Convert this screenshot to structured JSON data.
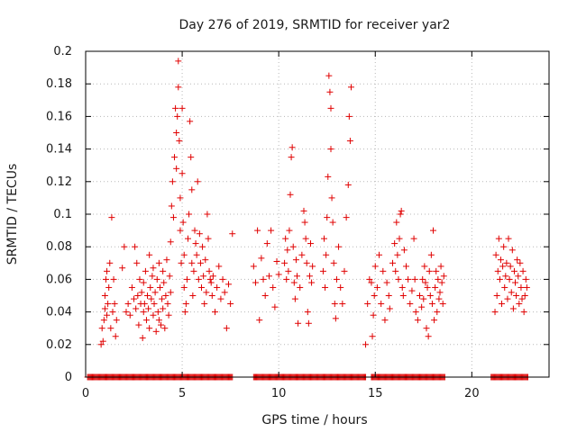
{
  "chart_data": {
    "type": "scatter",
    "title": "Day 276 of 2019, SRMTID for receiver yar2",
    "xlabel": "GPS time / hours",
    "ylabel": "SRMTID / TECUs",
    "xlim": [
      0,
      24
    ],
    "ylim": [
      0,
      0.2
    ],
    "xticks": [
      0,
      5,
      10,
      15,
      20
    ],
    "yticks": [
      0,
      0.02,
      0.04,
      0.06,
      0.08,
      0.1,
      0.12,
      0.14,
      0.16,
      0.18,
      0.2
    ],
    "grid": true,
    "marker": "+",
    "color": "#e00000",
    "series": [
      {
        "name": "SRMTID",
        "points": [
          [
            0.8,
            0.02
          ],
          [
            0.85,
            0.03
          ],
          [
            0.9,
            0.022
          ],
          [
            0.95,
            0.035
          ],
          [
            1.0,
            0.042
          ],
          [
            1.0,
            0.05
          ],
          [
            1.05,
            0.06
          ],
          [
            1.1,
            0.038
          ],
          [
            1.1,
            0.065
          ],
          [
            1.15,
            0.045
          ],
          [
            1.2,
            0.055
          ],
          [
            1.25,
            0.07
          ],
          [
            1.3,
            0.03
          ],
          [
            1.35,
            0.098
          ],
          [
            1.4,
            0.04
          ],
          [
            1.45,
            0.06
          ],
          [
            1.5,
            0.045
          ],
          [
            1.55,
            0.025
          ],
          [
            1.6,
            0.035
          ],
          [
            1.9,
            0.067
          ],
          [
            2.0,
            0.08
          ],
          [
            2.1,
            0.04
          ],
          [
            2.2,
            0.045
          ],
          [
            2.3,
            0.038
          ],
          [
            2.4,
            0.055
          ],
          [
            2.5,
            0.048
          ],
          [
            2.55,
            0.08
          ],
          [
            2.6,
            0.042
          ],
          [
            2.65,
            0.07
          ],
          [
            2.7,
            0.05
          ],
          [
            2.75,
            0.032
          ],
          [
            2.8,
            0.06
          ],
          [
            2.85,
            0.045
          ],
          [
            2.9,
            0.052
          ],
          [
            2.95,
            0.024
          ],
          [
            3.0,
            0.04
          ],
          [
            3.0,
            0.058
          ],
          [
            3.05,
            0.045
          ],
          [
            3.1,
            0.065
          ],
          [
            3.15,
            0.035
          ],
          [
            3.2,
            0.05
          ],
          [
            3.25,
            0.042
          ],
          [
            3.3,
            0.075
          ],
          [
            3.3,
            0.03
          ],
          [
            3.35,
            0.055
          ],
          [
            3.4,
            0.048
          ],
          [
            3.45,
            0.062
          ],
          [
            3.5,
            0.038
          ],
          [
            3.5,
            0.067
          ],
          [
            3.55,
            0.045
          ],
          [
            3.6,
            0.052
          ],
          [
            3.65,
            0.028
          ],
          [
            3.7,
            0.06
          ],
          [
            3.75,
            0.04
          ],
          [
            3.8,
            0.035
          ],
          [
            3.8,
            0.07
          ],
          [
            3.85,
            0.055
          ],
          [
            3.9,
            0.032
          ],
          [
            3.95,
            0.048
          ],
          [
            4.0,
            0.065
          ],
          [
            4.0,
            0.042
          ],
          [
            4.05,
            0.058
          ],
          [
            4.1,
            0.03
          ],
          [
            4.15,
            0.05
          ],
          [
            4.2,
            0.072
          ],
          [
            4.25,
            0.045
          ],
          [
            4.3,
            0.038
          ],
          [
            4.35,
            0.062
          ],
          [
            4.4,
            0.052
          ],
          [
            4.4,
            0.083
          ],
          [
            4.45,
            0.105
          ],
          [
            4.5,
            0.12
          ],
          [
            4.55,
            0.098
          ],
          [
            4.6,
            0.135
          ],
          [
            4.65,
            0.165
          ],
          [
            4.7,
            0.15
          ],
          [
            4.7,
            0.128
          ],
          [
            4.75,
            0.16
          ],
          [
            4.8,
            0.194
          ],
          [
            4.8,
            0.178
          ],
          [
            4.85,
            0.145
          ],
          [
            4.9,
            0.11
          ],
          [
            4.9,
            0.09
          ],
          [
            4.95,
            0.07
          ],
          [
            5.0,
            0.165
          ],
          [
            5.0,
            0.125
          ],
          [
            5.05,
            0.095
          ],
          [
            5.1,
            0.075
          ],
          [
            5.1,
            0.055
          ],
          [
            5.15,
            0.04
          ],
          [
            5.2,
            0.045
          ],
          [
            5.25,
            0.06
          ],
          [
            5.3,
            0.085
          ],
          [
            5.35,
            0.1
          ],
          [
            5.4,
            0.157
          ],
          [
            5.45,
            0.135
          ],
          [
            5.5,
            0.115
          ],
          [
            5.5,
            0.07
          ],
          [
            5.55,
            0.05
          ],
          [
            5.6,
            0.065
          ],
          [
            5.65,
            0.09
          ],
          [
            5.7,
            0.082
          ],
          [
            5.75,
            0.075
          ],
          [
            5.8,
            0.12
          ],
          [
            5.85,
            0.06
          ],
          [
            5.9,
            0.088
          ],
          [
            5.95,
            0.07
          ],
          [
            6.0,
            0.055
          ],
          [
            6.05,
            0.08
          ],
          [
            6.1,
            0.062
          ],
          [
            6.15,
            0.045
          ],
          [
            6.2,
            0.072
          ],
          [
            6.25,
            0.052
          ],
          [
            6.3,
            0.1
          ],
          [
            6.35,
            0.085
          ],
          [
            6.4,
            0.065
          ],
          [
            6.45,
            0.06
          ],
          [
            6.5,
            0.058
          ],
          [
            6.55,
            0.05
          ],
          [
            6.6,
            0.062
          ],
          [
            6.7,
            0.04
          ],
          [
            6.8,
            0.055
          ],
          [
            6.9,
            0.068
          ],
          [
            7.0,
            0.048
          ],
          [
            7.1,
            0.06
          ],
          [
            7.2,
            0.052
          ],
          [
            7.3,
            0.03
          ],
          [
            7.4,
            0.057
          ],
          [
            7.5,
            0.045
          ],
          [
            7.6,
            0.088
          ],
          [
            8.7,
            0.068
          ],
          [
            8.8,
            0.058
          ],
          [
            8.9,
            0.09
          ],
          [
            9.0,
            0.035
          ],
          [
            9.1,
            0.073
          ],
          [
            9.2,
            0.06
          ],
          [
            9.3,
            0.05
          ],
          [
            9.4,
            0.082
          ],
          [
            9.5,
            0.062
          ],
          [
            9.6,
            0.09
          ],
          [
            9.7,
            0.055
          ],
          [
            9.8,
            0.043
          ],
          [
            9.9,
            0.071
          ],
          [
            10.0,
            0.063
          ],
          [
            10.3,
            0.07
          ],
          [
            10.35,
            0.085
          ],
          [
            10.4,
            0.06
          ],
          [
            10.45,
            0.078
          ],
          [
            10.5,
            0.065
          ],
          [
            10.55,
            0.09
          ],
          [
            10.6,
            0.112
          ],
          [
            10.65,
            0.135
          ],
          [
            10.7,
            0.141
          ],
          [
            10.75,
            0.08
          ],
          [
            10.8,
            0.058
          ],
          [
            10.85,
            0.048
          ],
          [
            10.9,
            0.072
          ],
          [
            10.95,
            0.062
          ],
          [
            11.0,
            0.033
          ],
          [
            11.1,
            0.055
          ],
          [
            11.2,
            0.075
          ],
          [
            11.3,
            0.102
          ],
          [
            11.35,
            0.095
          ],
          [
            11.4,
            0.085
          ],
          [
            11.45,
            0.07
          ],
          [
            11.5,
            0.04
          ],
          [
            11.55,
            0.033
          ],
          [
            11.6,
            0.062
          ],
          [
            11.65,
            0.082
          ],
          [
            11.7,
            0.058
          ],
          [
            11.75,
            0.068
          ],
          [
            12.3,
            0.065
          ],
          [
            12.35,
            0.085
          ],
          [
            12.4,
            0.055
          ],
          [
            12.45,
            0.075
          ],
          [
            12.5,
            0.098
          ],
          [
            12.55,
            0.123
          ],
          [
            12.6,
            0.185
          ],
          [
            12.65,
            0.175
          ],
          [
            12.7,
            0.165
          ],
          [
            12.7,
            0.14
          ],
          [
            12.75,
            0.11
          ],
          [
            12.8,
            0.095
          ],
          [
            12.85,
            0.07
          ],
          [
            12.9,
            0.045
          ],
          [
            12.95,
            0.036
          ],
          [
            13.0,
            0.06
          ],
          [
            13.1,
            0.08
          ],
          [
            13.2,
            0.055
          ],
          [
            13.3,
            0.045
          ],
          [
            13.4,
            0.065
          ],
          [
            13.5,
            0.098
          ],
          [
            13.6,
            0.118
          ],
          [
            13.65,
            0.16
          ],
          [
            13.7,
            0.145
          ],
          [
            13.75,
            0.178
          ],
          [
            14.5,
            0.02
          ],
          [
            14.6,
            0.045
          ],
          [
            14.7,
            0.06
          ],
          [
            14.8,
            0.058
          ],
          [
            14.85,
            0.025
          ],
          [
            14.9,
            0.038
          ],
          [
            14.95,
            0.05
          ],
          [
            15.0,
            0.068
          ],
          [
            15.1,
            0.055
          ],
          [
            15.2,
            0.075
          ],
          [
            15.3,
            0.045
          ],
          [
            15.4,
            0.065
          ],
          [
            15.5,
            0.035
          ],
          [
            15.6,
            0.058
          ],
          [
            15.7,
            0.05
          ],
          [
            15.75,
            0.042
          ],
          [
            15.9,
            0.07
          ],
          [
            16.0,
            0.082
          ],
          [
            16.05,
            0.065
          ],
          [
            16.1,
            0.095
          ],
          [
            16.15,
            0.075
          ],
          [
            16.2,
            0.06
          ],
          [
            16.25,
            0.085
          ],
          [
            16.3,
            0.1
          ],
          [
            16.35,
            0.102
          ],
          [
            16.4,
            0.055
          ],
          [
            16.45,
            0.05
          ],
          [
            16.5,
            0.078
          ],
          [
            16.6,
            0.068
          ],
          [
            16.7,
            0.06
          ],
          [
            16.8,
            0.045
          ],
          [
            16.9,
            0.053
          ],
          [
            17.0,
            0.085
          ],
          [
            17.05,
            0.06
          ],
          [
            17.1,
            0.04
          ],
          [
            17.2,
            0.035
          ],
          [
            17.3,
            0.05
          ],
          [
            17.4,
            0.043
          ],
          [
            17.45,
            0.06
          ],
          [
            17.5,
            0.048
          ],
          [
            17.55,
            0.068
          ],
          [
            17.6,
            0.058
          ],
          [
            17.65,
            0.03
          ],
          [
            17.7,
            0.055
          ],
          [
            17.75,
            0.025
          ],
          [
            17.8,
            0.065
          ],
          [
            17.85,
            0.05
          ],
          [
            17.9,
            0.075
          ],
          [
            17.95,
            0.045
          ],
          [
            18.0,
            0.09
          ],
          [
            18.05,
            0.035
          ],
          [
            18.1,
            0.055
          ],
          [
            18.15,
            0.065
          ],
          [
            18.2,
            0.04
          ],
          [
            18.25,
            0.06
          ],
          [
            18.3,
            0.048
          ],
          [
            18.35,
            0.052
          ],
          [
            18.4,
            0.068
          ],
          [
            18.45,
            0.058
          ],
          [
            18.5,
            0.045
          ],
          [
            18.55,
            0.062
          ],
          [
            21.2,
            0.04
          ],
          [
            21.25,
            0.075
          ],
          [
            21.3,
            0.05
          ],
          [
            21.35,
            0.065
          ],
          [
            21.4,
            0.085
          ],
          [
            21.45,
            0.06
          ],
          [
            21.5,
            0.072
          ],
          [
            21.55,
            0.045
          ],
          [
            21.6,
            0.068
          ],
          [
            21.65,
            0.08
          ],
          [
            21.7,
            0.055
          ],
          [
            21.75,
            0.062
          ],
          [
            21.8,
            0.07
          ],
          [
            21.85,
            0.048
          ],
          [
            21.9,
            0.085
          ],
          [
            21.95,
            0.06
          ],
          [
            22.0,
            0.068
          ],
          [
            22.05,
            0.052
          ],
          [
            22.1,
            0.078
          ],
          [
            22.15,
            0.042
          ],
          [
            22.2,
            0.065
          ],
          [
            22.25,
            0.058
          ],
          [
            22.3,
            0.05
          ],
          [
            22.35,
            0.072
          ],
          [
            22.4,
            0.062
          ],
          [
            22.45,
            0.045
          ],
          [
            22.5,
            0.07
          ],
          [
            22.55,
            0.055
          ],
          [
            22.6,
            0.048
          ],
          [
            22.65,
            0.065
          ],
          [
            22.7,
            0.04
          ],
          [
            22.75,
            0.05
          ],
          [
            22.8,
            0.06
          ],
          [
            22.85,
            0.055
          ]
        ],
        "zero_segments": [
          [
            0.1,
            7.6
          ],
          [
            8.7,
            14.5
          ],
          [
            14.8,
            18.6
          ],
          [
            21.0,
            22.9
          ]
        ]
      }
    ]
  }
}
